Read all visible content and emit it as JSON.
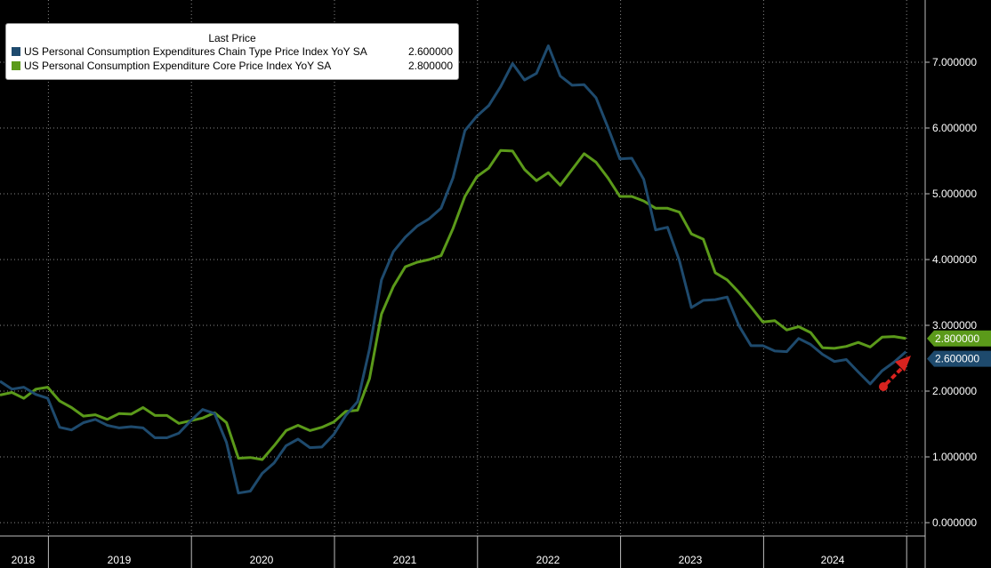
{
  "legend": {
    "title": "Last Price",
    "series": [
      {
        "name": "US Personal Consumption Expenditures Chain Type Price Index YoY SA",
        "last": "2.600000"
      },
      {
        "name": "US Personal Consumption Expenditure Core Price Index YoY SA",
        "last": "2.800000"
      }
    ]
  },
  "colors": {
    "headline": "#1e4a6d",
    "core": "#5b9a1a",
    "background": "#000000",
    "annotation_arrow": "#d9231f"
  },
  "chart_data": {
    "type": "line",
    "title": "",
    "xlabel": "",
    "ylabel": "",
    "ylim": [
      -0.2,
      7.9
    ],
    "y_ticks": [
      "0.000000",
      "1.000000",
      "2.000000",
      "3.000000",
      "4.000000",
      "5.000000",
      "6.000000",
      "7.000000"
    ],
    "year_labels": [
      "2018",
      "2019",
      "2020",
      "2021",
      "2022",
      "2023",
      "2024"
    ],
    "grid": true,
    "legend_position": "top-left",
    "annotation": "red arrow pointing up toward the latest headline value",
    "x_start": "2018-07",
    "x_end": "2024-09",
    "series": [
      {
        "name": "US Personal Consumption Expenditures Chain Type Price Index YoY SA",
        "last_label": "2.600000",
        "values": [
          2.15,
          2.03,
          2.06,
          1.95,
          1.89,
          1.45,
          1.41,
          1.52,
          1.57,
          1.48,
          1.44,
          1.46,
          1.44,
          1.29,
          1.29,
          1.36,
          1.55,
          1.72,
          1.66,
          1.22,
          0.45,
          0.48,
          0.75,
          0.91,
          1.17,
          1.27,
          1.14,
          1.15,
          1.34,
          1.63,
          1.84,
          2.64,
          3.69,
          4.12,
          4.34,
          4.51,
          4.62,
          4.78,
          5.24,
          5.96,
          6.18,
          6.34,
          6.63,
          6.98,
          6.73,
          6.83,
          7.25,
          6.79,
          6.65,
          6.66,
          6.46,
          6.01,
          5.53,
          5.54,
          5.22,
          4.45,
          4.49,
          3.98,
          3.27,
          3.38,
          3.39,
          3.43,
          2.99,
          2.69,
          2.69,
          2.61,
          2.6,
          2.8,
          2.71,
          2.56,
          2.45,
          2.48,
          2.29,
          2.11,
          2.31,
          2.44,
          2.6
        ]
      },
      {
        "name": "US Personal Consumption Expenditure Core Price Index YoY SA",
        "last_label": "2.800000",
        "values": [
          1.94,
          1.98,
          1.89,
          2.03,
          2.06,
          1.85,
          1.75,
          1.62,
          1.64,
          1.57,
          1.66,
          1.65,
          1.75,
          1.63,
          1.63,
          1.51,
          1.55,
          1.59,
          1.67,
          1.52,
          0.98,
          0.99,
          0.96,
          1.17,
          1.4,
          1.48,
          1.4,
          1.45,
          1.53,
          1.69,
          1.71,
          2.19,
          3.17,
          3.59,
          3.89,
          3.96,
          4.0,
          4.06,
          4.47,
          4.96,
          5.26,
          5.39,
          5.66,
          5.65,
          5.37,
          5.2,
          5.32,
          5.13,
          5.37,
          5.61,
          5.48,
          5.24,
          4.96,
          4.96,
          4.89,
          4.78,
          4.78,
          4.72,
          4.39,
          4.31,
          3.8,
          3.69,
          3.5,
          3.28,
          3.05,
          3.07,
          2.93,
          2.98,
          2.89,
          2.66,
          2.65,
          2.68,
          2.74,
          2.67,
          2.82,
          2.83,
          2.8
        ]
      }
    ]
  }
}
